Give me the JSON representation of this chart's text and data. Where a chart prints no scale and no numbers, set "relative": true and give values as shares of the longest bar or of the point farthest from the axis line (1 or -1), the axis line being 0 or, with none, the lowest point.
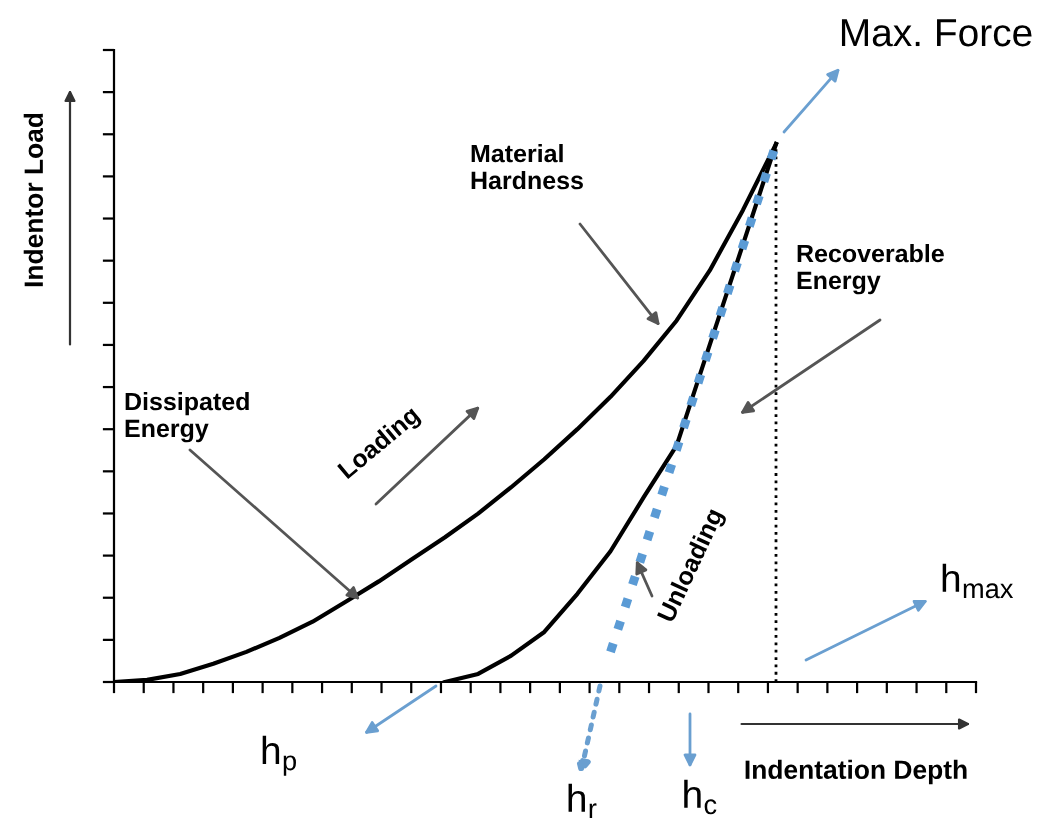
{
  "chart_data": {
    "type": "line",
    "relative": true,
    "xlabel": "Indentation Depth",
    "ylabel": "Indentor Load",
    "categories": [
      null,
      null,
      null,
      null,
      null,
      null,
      null,
      null,
      null,
      null,
      null,
      null,
      null,
      null,
      null,
      null,
      null,
      null,
      null,
      null,
      null
    ],
    "series": [
      {
        "color": "#000000",
        "line_style": "solid",
        "values": [
          0,
          0.004,
          0.015,
          0.034,
          0.056,
          0.082,
          0.112,
          0.149,
          0.187,
          0.228,
          0.269,
          0.313,
          0.362,
          0.414,
          0.47,
          0.53,
          0.597,
          0.672,
          0.765,
          0.877,
          1
        ]
      },
      {
        "color": "#000000",
        "line_style": "solid",
        "values": [
          null,
          null,
          null,
          null,
          null,
          null,
          null,
          null,
          null,
          null,
          0,
          0.015,
          0.049,
          0.093,
          0.164,
          0.243,
          0.343,
          0.44,
          0.627,
          0.813,
          1
        ]
      },
      {
        "color": "#5b9bd5",
        "line_style": "dotted",
        "values": [
          null,
          null,
          null,
          null,
          null,
          null,
          null,
          null,
          null,
          null,
          null,
          null,
          null,
          null,
          null,
          0.056,
          0.244,
          0.433,
          0.623,
          0.81,
          1
        ]
      }
    ],
    "annotations": [
      "Max. Force",
      "Material\nHardness",
      "Recoverable\nEnergy",
      "Dissipated\nEnergy",
      "Loading",
      "Unloading",
      "h$_{max}$",
      "h$_{p}$",
      "h$_{r}$",
      "h$_{c}$"
    ],
    "legend": false,
    "grid": false,
    "marker": "none",
    "tick_labels": false
  }
}
